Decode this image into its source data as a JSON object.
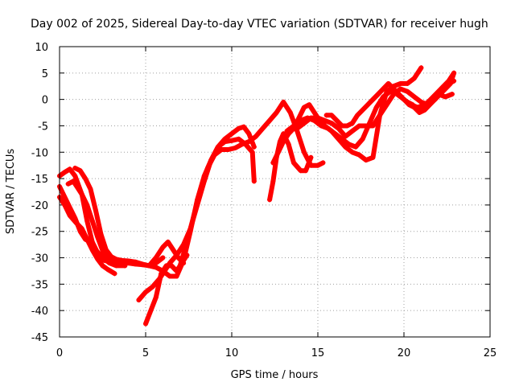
{
  "chart_data": {
    "type": "scatter",
    "title": "Day 002 of 2025, Sidereal Day-to-day VTEC variation (SDTVAR) for receiver hugh",
    "xlabel": "GPS time / hours",
    "ylabel": "SDTVAR / TECUs",
    "xlim": [
      0,
      25
    ],
    "ylim": [
      -45,
      10
    ],
    "xticks": [
      0,
      5,
      10,
      15,
      20,
      25
    ],
    "yticks": [
      10,
      5,
      0,
      -5,
      -10,
      -15,
      -20,
      -25,
      -30,
      -35,
      -40,
      -45
    ],
    "grid": true,
    "color": "#ff0000",
    "marker": "plus",
    "series": [
      {
        "x": [
          0.0,
          0.3,
          0.6,
          0.9,
          1.3,
          1.6,
          1.9,
          2.2,
          2.6,
          3.0,
          3.5,
          4.0,
          4.4,
          4.8,
          5.2,
          5.6,
          6.0,
          6.4,
          6.8,
          7.2,
          7.6,
          8.0,
          8.4,
          8.8,
          9.2,
          9.6,
          10.0,
          10.4,
          10.7,
          11.0,
          11.3
        ],
        "y": [
          -14.5,
          -13.8,
          -13.2,
          -14.5,
          -18,
          -23,
          -27,
          -29,
          -30.5,
          -30.8,
          -30.5,
          -30.6,
          -30.8,
          -31.2,
          -31.5,
          -31.8,
          -32.5,
          -33.5,
          -33.5,
          -30.5,
          -25,
          -19,
          -14.5,
          -11.5,
          -9,
          -7.5,
          -6.5,
          -5.5,
          -5.2,
          -6.5,
          -9
        ]
      },
      {
        "x": [
          0.0,
          0.3,
          0.6,
          0.9,
          1.2,
          1.5,
          1.8,
          2.1,
          2.5,
          2.9,
          3.3,
          3.8
        ],
        "y": [
          -16.5,
          -18.5,
          -20.5,
          -22.5,
          -25,
          -26.5,
          -27,
          -28.5,
          -30,
          -31,
          -31.5,
          -31.5
        ]
      },
      {
        "x": [
          0.0,
          0.3,
          0.6,
          1.0,
          1.3,
          1.6,
          1.9,
          2.2,
          2.5,
          2.8,
          3.2
        ],
        "y": [
          -18.5,
          -20,
          -22,
          -23.5,
          -24.5,
          -26.5,
          -28.5,
          -30.2,
          -31.5,
          -32.2,
          -33
        ]
      },
      {
        "x": [
          0.5,
          0.8,
          1.0,
          1.3,
          1.6,
          1.9,
          2.2,
          2.6,
          3.0,
          3.4,
          3.8
        ],
        "y": [
          -16,
          -15.5,
          -16.5,
          -18,
          -20,
          -23,
          -26,
          -29.5,
          -30.5,
          -31,
          -31.5
        ]
      },
      {
        "x": [
          0.9,
          1.2,
          1.5,
          1.8,
          2.1,
          2.4,
          2.7,
          3.0,
          3.3,
          3.6,
          4.0,
          4.4,
          4.8,
          5.2,
          5.6,
          6.0
        ],
        "y": [
          -13,
          -13.5,
          -15,
          -17,
          -21,
          -25.5,
          -28.5,
          -29.8,
          -30.3,
          -30.5,
          -31,
          -31.2,
          -31.3,
          -31.5,
          -31,
          -30
        ]
      },
      {
        "x": [
          4.6,
          5.0,
          5.4,
          5.8,
          6.1,
          6.4,
          6.8,
          7.2,
          7.6,
          8.0,
          8.4,
          8.8,
          9.2,
          9.6,
          10.0,
          10.4,
          10.8,
          11.2,
          11.3
        ],
        "y": [
          -38,
          -36.5,
          -35.5,
          -34,
          -32.5,
          -31,
          -29.5,
          -27.5,
          -24.5,
          -20,
          -15.5,
          -11.5,
          -9,
          -8,
          -7.8,
          -7.5,
          -8.5,
          -10,
          -15.5
        ]
      },
      {
        "x": [
          5.0,
          5.3,
          5.6,
          5.9,
          6.2,
          6.5,
          6.8,
          7.1,
          7.4
        ],
        "y": [
          -42.5,
          -40,
          -37.5,
          -33,
          -31.5,
          -31.5,
          -32.5,
          -31,
          -29.5
        ]
      },
      {
        "x": [
          5.2,
          5.6,
          6.0,
          6.3,
          6.6,
          6.9,
          7.2
        ],
        "y": [
          -31.5,
          -30,
          -28,
          -27,
          -28.5,
          -30,
          -31
        ]
      },
      {
        "x": [
          7.0,
          7.4,
          7.8,
          8.2,
          8.6,
          9.0,
          9.4,
          9.8,
          10.2,
          10.6,
          11.0,
          11.4,
          11.8,
          12.2,
          12.6,
          13.0,
          13.4,
          13.8,
          14.2,
          14.6,
          15.0,
          15.3
        ],
        "y": [
          -31.5,
          -27,
          -22,
          -17,
          -13,
          -10.5,
          -9.5,
          -9.5,
          -9.2,
          -8.5,
          -8,
          -7,
          -5.5,
          -4,
          -2.5,
          -0.5,
          -2.5,
          -6,
          -10,
          -12.5,
          -12.5,
          -12
        ]
      },
      {
        "x": [
          12.2,
          12.4,
          12.6,
          12.8,
          13.0,
          13.3,
          13.6,
          14.0,
          14.3,
          14.6
        ],
        "y": [
          -19,
          -15.5,
          -11,
          -8,
          -6.5,
          -8.5,
          -12,
          -13.5,
          -13.5,
          -11
        ]
      },
      {
        "x": [
          12.4,
          12.7,
          13.0,
          13.3,
          13.6,
          13.9,
          14.2,
          14.5,
          14.8,
          15.1,
          15.4,
          15.8,
          16.2,
          16.6,
          17.0,
          17.4,
          17.8,
          18.2,
          18.6,
          19.0,
          19.4,
          19.8,
          20.2,
          20.6,
          21.0
        ],
        "y": [
          -12,
          -10,
          -8,
          -6.5,
          -5.5,
          -3.5,
          -1.5,
          -1,
          -2.5,
          -4,
          -5,
          -6,
          -7.5,
          -9,
          -10,
          -10.5,
          -11.5,
          -11,
          -3,
          1.5,
          2.5,
          3,
          3,
          4,
          6
        ]
      },
      {
        "x": [
          13.2,
          13.6,
          14.0,
          14.4,
          14.8,
          15.2,
          15.6,
          16.0,
          16.4,
          16.8,
          17.2,
          17.6,
          18.0,
          18.4,
          18.8,
          19.2,
          19.6,
          20.0,
          20.4,
          20.8,
          21.2,
          21.6,
          22.0,
          22.4,
          22.8
        ],
        "y": [
          -6,
          -5,
          -4,
          -3.5,
          -4,
          -5,
          -5.5,
          -6.5,
          -7.5,
          -8.5,
          -9,
          -7.5,
          -4.5,
          -1.5,
          0.5,
          1.5,
          1,
          0,
          -1,
          -1.5,
          -1,
          0,
          1,
          0.5,
          1
        ]
      },
      {
        "x": [
          13.8,
          14.2,
          14.6,
          15.0,
          15.4,
          15.8,
          16.2,
          16.6,
          17.0,
          17.4,
          17.8,
          18.2,
          18.6,
          19.0,
          19.4,
          19.8,
          20.2,
          20.6,
          21.0,
          21.4,
          21.8,
          22.2,
          22.6,
          22.9
        ],
        "y": [
          -5.5,
          -4.5,
          -3.5,
          -3.5,
          -4,
          -4.5,
          -5.5,
          -7,
          -6,
          -5,
          -5,
          -5,
          -3,
          -1,
          1,
          2,
          1.5,
          0.5,
          -0.5,
          -1,
          0,
          1.5,
          3,
          3.5
        ]
      },
      {
        "x": [
          15.5,
          15.8,
          16.1,
          16.4,
          16.7,
          17.0,
          17.3,
          17.6,
          17.9,
          18.2,
          18.5,
          18.8,
          19.1,
          19.4,
          19.7,
          20.0,
          20.3,
          20.6,
          20.9,
          21.2,
          21.5,
          21.8,
          22.1,
          22.4,
          22.7,
          22.9
        ],
        "y": [
          -3,
          -3,
          -4,
          -5,
          -5,
          -4.5,
          -3,
          -2,
          -1,
          0,
          1,
          2,
          3,
          2,
          1,
          0,
          -1,
          -1.5,
          -2.5,
          -2,
          -1,
          0,
          1,
          2,
          3,
          5
        ]
      },
      {
        "x": [
          20.2,
          20.5,
          20.8,
          21.1,
          21.4,
          21.7,
          22.0,
          22.3,
          22.6,
          22.9
        ],
        "y": [
          -0.5,
          -1,
          -2,
          -1.5,
          -0.5,
          0.5,
          1.5,
          2.5,
          3.5,
          5
        ]
      }
    ]
  }
}
